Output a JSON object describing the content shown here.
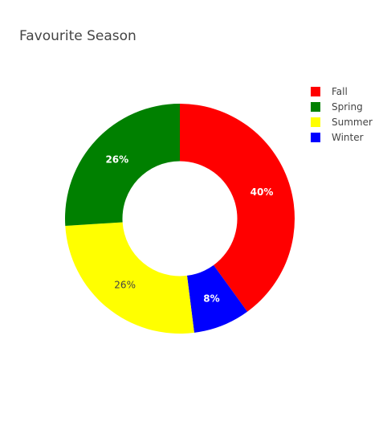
{
  "chart_data": {
    "type": "pie",
    "title": "Favourite Season",
    "hole": 0.5,
    "slices": [
      {
        "label": "Fall",
        "value": 40,
        "display": "40%",
        "color": "#ff0000",
        "text_color": "#ffffff",
        "text_bold": true
      },
      {
        "label": "Winter",
        "value": 8,
        "display": "8%",
        "color": "#0000ff",
        "text_color": "#ffffff",
        "text_bold": true
      },
      {
        "label": "Summer",
        "value": 26,
        "display": "26%",
        "color": "#ffff00",
        "text_color": "#444444",
        "text_bold": false
      },
      {
        "label": "Spring",
        "value": 26,
        "display": "26%",
        "color": "#008000",
        "text_color": "#ffffff",
        "text_bold": true
      }
    ],
    "legend": {
      "position": "top-right",
      "items": [
        {
          "label": "Fall",
          "color": "#ff0000"
        },
        {
          "label": "Spring",
          "color": "#008000"
        },
        {
          "label": "Summer",
          "color": "#ffff00"
        },
        {
          "label": "Winter",
          "color": "#0000ff"
        }
      ]
    },
    "direction": "clockwise",
    "start": "top"
  }
}
